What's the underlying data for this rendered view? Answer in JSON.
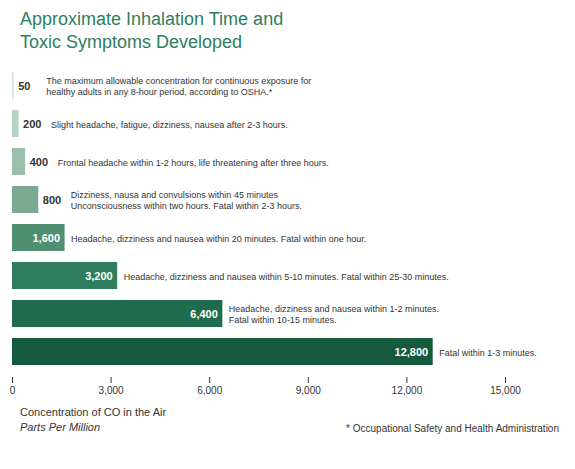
{
  "chart_data": {
    "type": "bar",
    "orientation": "horizontal",
    "title": "Approximate Inhalation Time and\nToxic Symptoms Developed",
    "xlabel": "Concentration of CO in the Air\nParts Per Million",
    "footnote": "* Occupational Safety and Health Administration",
    "categories": [
      null,
      null,
      null,
      null,
      null,
      null,
      null,
      null
    ],
    "values": [
      50,
      200,
      400,
      800,
      1600,
      3200,
      6400,
      12800
    ],
    "value_labels": [
      "50",
      "200",
      "400",
      "800",
      "1,600",
      "3,200",
      "6,400",
      "12,800"
    ],
    "data_labels": true,
    "colors": [
      "#d0e4d8",
      "#b8d4c0",
      "#9abfaa",
      "#7aaa90",
      "#4d8f70",
      "#2e7d5e",
      "#1e6b4e",
      "#155a3e"
    ],
    "annotations": [
      "The maximum allowable concentration for continuous exposure for\nhealthy adults in any 8-hour period, according to OSHA.*",
      "Slight headache, fatigue, dizziness, nausea after 2-3 hours.",
      "Frontal headache within 1-2 hours, life threatening after three hours.",
      "Dizziness, nausa and convulsions within 45 minutes\nUnconsciousness within two hours. Fatal within 2-3 hours.",
      "Headache, dizziness and nausea within 20 minutes. Fatal within one hour.",
      "Headache, dizziness and nausea within 5-10 minutes. Fatal within 25-30 minutes.",
      "Headache, dizziness and nausea within 1-2 minutes.\nFatal within 10-15 minutes.",
      "Fatal within 1-3 minutes."
    ],
    "xlim": [
      0,
      15000
    ],
    "xticks": [
      0,
      {
        "value": 3000,
        "label": "3,000"
      },
      {
        "value": 6000,
        "label": "6,000"
      },
      {
        "value": 9000,
        "label": "9,000"
      },
      {
        "value": 12000,
        "label": "12,000"
      },
      {
        "value": 15000,
        "label": "15,000"
      }
    ],
    "tick_labels": "x",
    "grid": false
  }
}
